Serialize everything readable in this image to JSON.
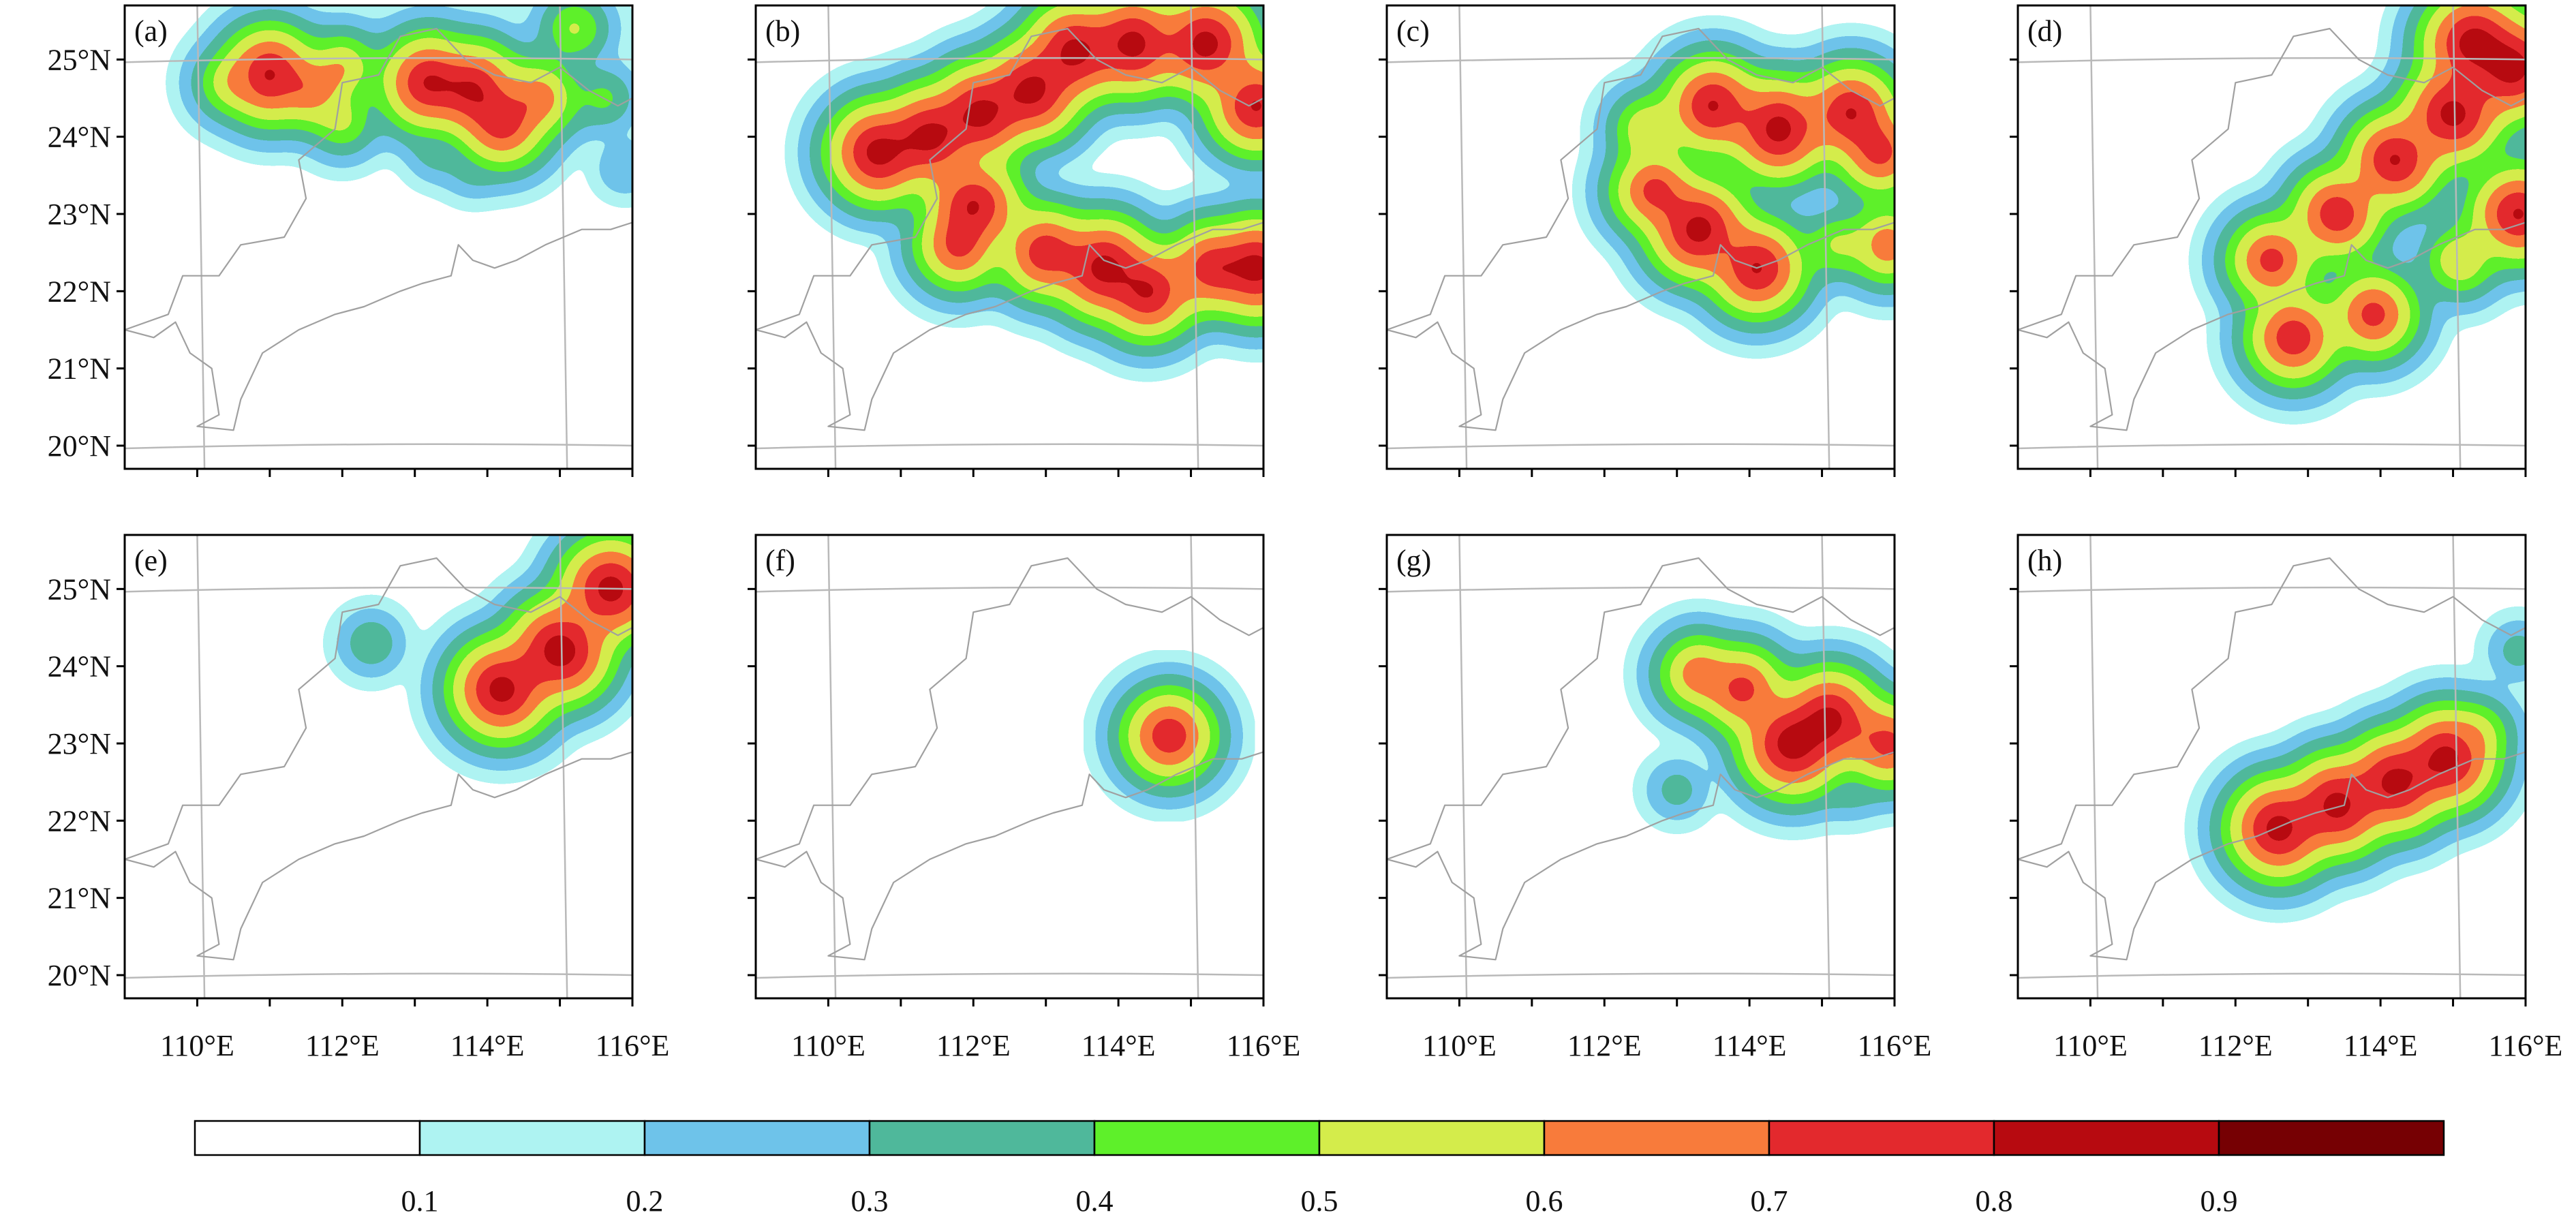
{
  "figure": {
    "panels": [
      {
        "label": "(a)",
        "id": "a"
      },
      {
        "label": "(b)",
        "id": "b"
      },
      {
        "label": "(c)",
        "id": "c"
      },
      {
        "label": "(d)",
        "id": "d"
      },
      {
        "label": "(e)",
        "id": "e"
      },
      {
        "label": "(f)",
        "id": "f"
      },
      {
        "label": "(g)",
        "id": "g"
      },
      {
        "label": "(h)",
        "id": "h"
      }
    ],
    "lat_ticks": [
      "25°N",
      "24°N",
      "23°N",
      "22°N",
      "21°N",
      "20°N"
    ],
    "lon_ticks": [
      "110°E",
      "112°E",
      "114°E",
      "116°E"
    ]
  },
  "colorbar": {
    "levels": [
      "0.1",
      "0.2",
      "0.3",
      "0.4",
      "0.5",
      "0.6",
      "0.7",
      "0.8",
      "0.9"
    ],
    "colors": [
      "#ffffff",
      "#aef3f2",
      "#6ec3ea",
      "#4fb89b",
      "#5ef02a",
      "#d4ec4b",
      "#f87b3b",
      "#e3292d",
      "#b70a10",
      "#760003"
    ]
  },
  "chart_data": {
    "type": "heatmap",
    "xlabel": "",
    "ylabel": "",
    "xlim": [
      109,
      116
    ],
    "ylim": [
      19.7,
      25.7
    ],
    "panels": [
      {
        "id": "a",
        "blobs": [
          {
            "lon": 110.5,
            "lat": 24.7,
            "v": 0.6
          },
          {
            "lon": 111.0,
            "lat": 24.8,
            "v": 0.9
          },
          {
            "lon": 111.6,
            "lat": 24.6,
            "v": 0.7
          },
          {
            "lon": 112.0,
            "lat": 24.9,
            "v": 0.6
          },
          {
            "lon": 112.0,
            "lat": 24.2,
            "v": 0.5
          },
          {
            "lon": 113.2,
            "lat": 24.7,
            "v": 0.9
          },
          {
            "lon": 113.8,
            "lat": 24.6,
            "v": 0.9
          },
          {
            "lon": 114.2,
            "lat": 24.2,
            "v": 0.85
          },
          {
            "lon": 114.7,
            "lat": 24.5,
            "v": 0.7
          },
          {
            "lon": 115.2,
            "lat": 25.4,
            "v": 0.5
          },
          {
            "lon": 113.3,
            "lat": 23.8,
            "v": 0.3
          },
          {
            "lon": 113.8,
            "lat": 23.6,
            "v": 0.3
          },
          {
            "lon": 115.6,
            "lat": 24.5,
            "v": 0.4
          },
          {
            "lon": 115.9,
            "lat": 23.6,
            "v": 0.25
          }
        ]
      },
      {
        "id": "b",
        "blobs": [
          {
            "lon": 110.7,
            "lat": 23.8,
            "v": 0.95
          },
          {
            "lon": 111.4,
            "lat": 24.0,
            "v": 0.95
          },
          {
            "lon": 112.1,
            "lat": 24.3,
            "v": 0.95
          },
          {
            "lon": 112.8,
            "lat": 24.6,
            "v": 0.95
          },
          {
            "lon": 113.4,
            "lat": 25.1,
            "v": 0.95
          },
          {
            "lon": 114.2,
            "lat": 25.2,
            "v": 0.95
          },
          {
            "lon": 115.2,
            "lat": 25.2,
            "v": 0.95
          },
          {
            "lon": 115.9,
            "lat": 24.4,
            "v": 0.9
          },
          {
            "lon": 112.0,
            "lat": 23.1,
            "v": 0.9
          },
          {
            "lon": 111.8,
            "lat": 22.6,
            "v": 0.8
          },
          {
            "lon": 113.0,
            "lat": 22.5,
            "v": 0.85
          },
          {
            "lon": 113.8,
            "lat": 22.3,
            "v": 0.95
          },
          {
            "lon": 114.4,
            "lat": 22.0,
            "v": 0.9
          },
          {
            "lon": 115.3,
            "lat": 22.3,
            "v": 0.85
          },
          {
            "lon": 115.9,
            "lat": 22.3,
            "v": 0.95
          }
        ]
      },
      {
        "id": "c",
        "blobs": [
          {
            "lon": 112.6,
            "lat": 24.1,
            "v": 0.6
          },
          {
            "lon": 113.5,
            "lat": 24.4,
            "v": 0.9
          },
          {
            "lon": 114.4,
            "lat": 24.1,
            "v": 0.95
          },
          {
            "lon": 115.4,
            "lat": 24.3,
            "v": 0.9
          },
          {
            "lon": 115.8,
            "lat": 23.8,
            "v": 0.8
          },
          {
            "lon": 112.7,
            "lat": 23.3,
            "v": 0.8
          },
          {
            "lon": 113.3,
            "lat": 22.8,
            "v": 0.95
          },
          {
            "lon": 114.1,
            "lat": 22.3,
            "v": 0.9
          },
          {
            "lon": 115.2,
            "lat": 22.6,
            "v": 0.5
          },
          {
            "lon": 115.9,
            "lat": 22.6,
            "v": 0.7
          }
        ]
      },
      {
        "id": "d",
        "blobs": [
          {
            "lon": 115.3,
            "lat": 25.2,
            "v": 0.98
          },
          {
            "lon": 115.8,
            "lat": 24.9,
            "v": 0.98
          },
          {
            "lon": 115.0,
            "lat": 24.3,
            "v": 0.95
          },
          {
            "lon": 114.2,
            "lat": 23.7,
            "v": 0.9
          },
          {
            "lon": 113.4,
            "lat": 23.0,
            "v": 0.85
          },
          {
            "lon": 112.5,
            "lat": 22.4,
            "v": 0.8
          },
          {
            "lon": 112.8,
            "lat": 21.4,
            "v": 0.85
          },
          {
            "lon": 113.9,
            "lat": 21.7,
            "v": 0.8
          },
          {
            "lon": 115.1,
            "lat": 22.4,
            "v": 0.6
          },
          {
            "lon": 115.9,
            "lat": 23.0,
            "v": 0.9
          }
        ]
      },
      {
        "id": "e",
        "blobs": [
          {
            "lon": 114.2,
            "lat": 23.7,
            "v": 0.95
          },
          {
            "lon": 115.0,
            "lat": 24.2,
            "v": 0.98
          },
          {
            "lon": 115.7,
            "lat": 25.0,
            "v": 0.95
          },
          {
            "lon": 112.4,
            "lat": 24.3,
            "v": 0.35
          }
        ]
      },
      {
        "id": "f",
        "blobs": [
          {
            "lon": 114.7,
            "lat": 23.1,
            "v": 0.85
          }
        ]
      },
      {
        "id": "g",
        "blobs": [
          {
            "lon": 113.3,
            "lat": 23.9,
            "v": 0.7
          },
          {
            "lon": 113.9,
            "lat": 23.7,
            "v": 0.8
          },
          {
            "lon": 114.6,
            "lat": 23.0,
            "v": 0.98
          },
          {
            "lon": 115.1,
            "lat": 23.3,
            "v": 0.95
          },
          {
            "lon": 115.9,
            "lat": 23.0,
            "v": 0.8
          },
          {
            "lon": 113.0,
            "lat": 22.4,
            "v": 0.3
          },
          {
            "lon": 115.4,
            "lat": 22.4,
            "v": 0.3
          }
        ]
      },
      {
        "id": "h",
        "blobs": [
          {
            "lon": 112.6,
            "lat": 21.9,
            "v": 0.95
          },
          {
            "lon": 113.4,
            "lat": 22.2,
            "v": 0.95
          },
          {
            "lon": 114.2,
            "lat": 22.5,
            "v": 0.95
          },
          {
            "lon": 114.9,
            "lat": 22.8,
            "v": 0.95
          },
          {
            "lon": 115.3,
            "lat": 23.1,
            "v": 0.6
          },
          {
            "lon": 115.9,
            "lat": 24.2,
            "v": 0.3
          }
        ]
      }
    ]
  }
}
